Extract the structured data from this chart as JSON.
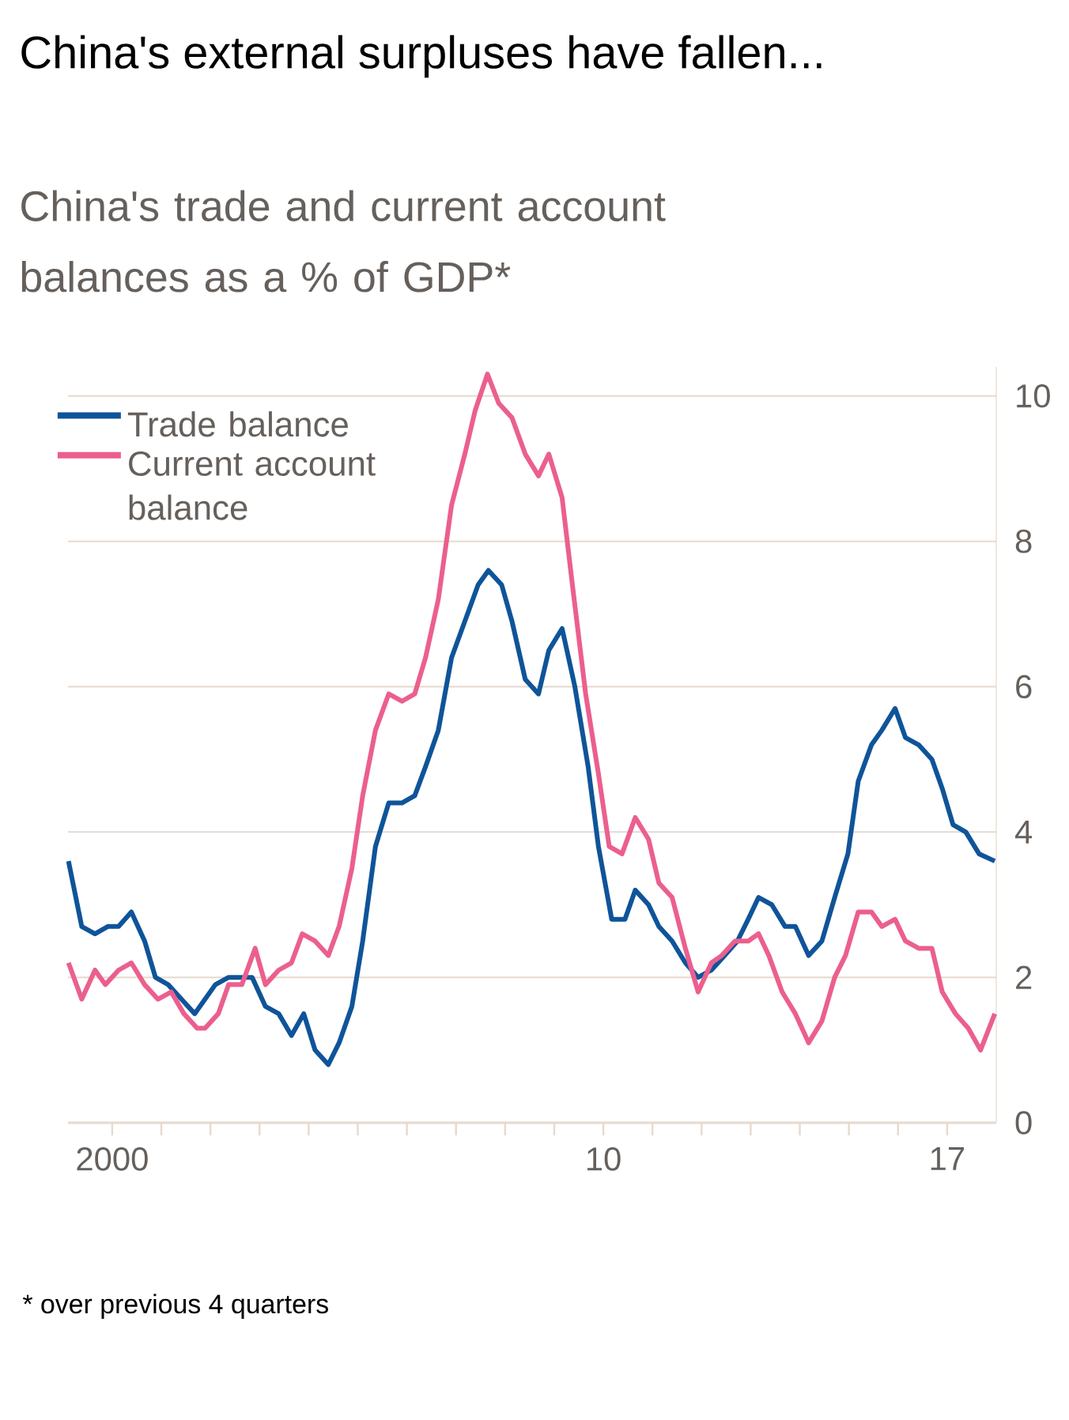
{
  "chart_data": {
    "type": "line",
    "title": "China's external surpluses have fallen...",
    "subtitle": "China's trade and current account balances as a % of GDP*",
    "annotations": [
      "* over previous 4 quarters"
    ],
    "series": [
      {
        "name": "Trade balance",
        "color": "#0f5499",
        "x": [
          1999.11,
          1999.38,
          1999.65,
          1999.91,
          2000.13,
          2000.39,
          2000.66,
          2000.88,
          2001.14,
          2001.41,
          2001.68,
          2001.89,
          2002.1,
          2002.37,
          2002.64,
          2002.85,
          2003.12,
          2003.39,
          2003.65,
          2003.9,
          2004.13,
          2004.4,
          2004.62,
          2004.88,
          2005.1,
          2005.36,
          2005.63,
          2005.9,
          2006.16,
          2006.38,
          2006.64,
          2006.91,
          2007.18,
          2007.45,
          2007.66,
          2007.93,
          2008.14,
          2008.41,
          2008.68,
          2008.89,
          2009.16,
          2009.42,
          2009.69,
          2009.9,
          2010.17,
          2010.44,
          2010.65,
          2010.92,
          2011.13,
          2011.4,
          2011.67,
          2011.93,
          2012.2,
          2012.47,
          2012.73,
          2012.95,
          2013.16,
          2013.43,
          2013.7,
          2013.91,
          2014.18,
          2014.45,
          2014.71,
          2014.98,
          2015.19,
          2015.46,
          2015.67,
          2015.94,
          2016.15,
          2016.42,
          2016.69,
          2016.9,
          2017.12,
          2017.38,
          2017.65,
          2017.97
        ],
        "values": [
          3.6,
          2.7,
          2.6,
          2.7,
          2.7,
          2.9,
          2.5,
          2.0,
          1.9,
          1.7,
          1.5,
          1.7,
          1.9,
          2.0,
          2.0,
          2.0,
          1.6,
          1.5,
          1.2,
          1.5,
          1.0,
          0.8,
          1.1,
          1.6,
          2.5,
          3.8,
          4.4,
          4.4,
          4.5,
          4.9,
          5.4,
          6.4,
          6.9,
          7.4,
          7.6,
          7.4,
          6.9,
          6.1,
          5.9,
          6.5,
          6.8,
          6.0,
          4.9,
          3.8,
          2.8,
          2.8,
          3.2,
          3.0,
          2.7,
          2.5,
          2.2,
          2.0,
          2.1,
          2.3,
          2.5,
          2.8,
          3.1,
          3.0,
          2.7,
          2.7,
          2.3,
          2.5,
          3.1,
          3.7,
          4.7,
          5.2,
          5.4,
          5.7,
          5.3,
          5.2,
          5.0,
          4.6,
          4.1,
          4.0,
          3.7,
          3.6
        ]
      },
      {
        "name": "Current account balance",
        "color": "#eb5f8e",
        "x": [
          1999.11,
          1999.38,
          1999.65,
          1999.86,
          2000.13,
          2000.39,
          2000.66,
          2000.93,
          2001.2,
          2001.46,
          2001.73,
          2001.89,
          2002.16,
          2002.37,
          2002.64,
          2002.91,
          2003.12,
          2003.39,
          2003.65,
          2003.87,
          2004.13,
          2004.4,
          2004.62,
          2004.88,
          2005.1,
          2005.36,
          2005.63,
          2005.9,
          2006.16,
          2006.38,
          2006.64,
          2006.91,
          2007.18,
          2007.39,
          2007.64,
          2007.87,
          2008.14,
          2008.41,
          2008.68,
          2008.89,
          2009.16,
          2009.37,
          2009.64,
          2009.9,
          2010.12,
          2010.38,
          2010.65,
          2010.92,
          2011.13,
          2011.4,
          2011.67,
          2011.93,
          2012.2,
          2012.41,
          2012.68,
          2012.95,
          2013.16,
          2013.37,
          2013.64,
          2013.91,
          2014.18,
          2014.45,
          2014.71,
          2014.93,
          2015.19,
          2015.46,
          2015.67,
          2015.94,
          2016.15,
          2016.42,
          2016.69,
          2016.9,
          2017.17,
          2017.43,
          2017.68,
          2017.97
        ],
        "values": [
          2.2,
          1.7,
          2.1,
          1.9,
          2.1,
          2.2,
          1.9,
          1.7,
          1.8,
          1.5,
          1.3,
          1.3,
          1.5,
          1.9,
          1.9,
          2.4,
          1.9,
          2.1,
          2.2,
          2.6,
          2.5,
          2.3,
          2.7,
          3.5,
          4.5,
          5.4,
          5.9,
          5.8,
          5.9,
          6.4,
          7.2,
          8.5,
          9.2,
          9.8,
          10.3,
          9.9,
          9.7,
          9.2,
          8.9,
          9.2,
          8.6,
          7.4,
          5.9,
          4.8,
          3.8,
          3.7,
          4.2,
          3.9,
          3.3,
          3.1,
          2.4,
          1.8,
          2.2,
          2.3,
          2.5,
          2.5,
          2.6,
          2.3,
          1.8,
          1.5,
          1.1,
          1.4,
          2.0,
          2.3,
          2.9,
          2.9,
          2.7,
          2.8,
          2.5,
          2.4,
          2.4,
          1.8,
          1.5,
          1.3,
          1.0,
          1.5
        ]
      }
    ],
    "xlim": [
      1999.1,
      2018.0
    ],
    "ylim": [
      0,
      10.4
    ],
    "xticks": [
      {
        "value": 2000,
        "label": "2000"
      },
      {
        "value": 2001,
        "label": null
      },
      {
        "value": 2002,
        "label": null
      },
      {
        "value": 2003,
        "label": null
      },
      {
        "value": 2004,
        "label": null
      },
      {
        "value": 2005,
        "label": null
      },
      {
        "value": 2006,
        "label": null
      },
      {
        "value": 2007,
        "label": null
      },
      {
        "value": 2008,
        "label": null
      },
      {
        "value": 2009,
        "label": null
      },
      {
        "value": 2010,
        "label": "10"
      },
      {
        "value": 2011,
        "label": null
      },
      {
        "value": 2012,
        "label": null
      },
      {
        "value": 2013,
        "label": null
      },
      {
        "value": 2014,
        "label": null
      },
      {
        "value": 2015,
        "label": null
      },
      {
        "value": 2016,
        "label": null
      },
      {
        "value": 2017,
        "label": "17"
      }
    ],
    "yticks": [
      0,
      2,
      4,
      6,
      8,
      10
    ],
    "grid": "y",
    "legend": "top left",
    "line_style": "solid",
    "marker": "none"
  }
}
